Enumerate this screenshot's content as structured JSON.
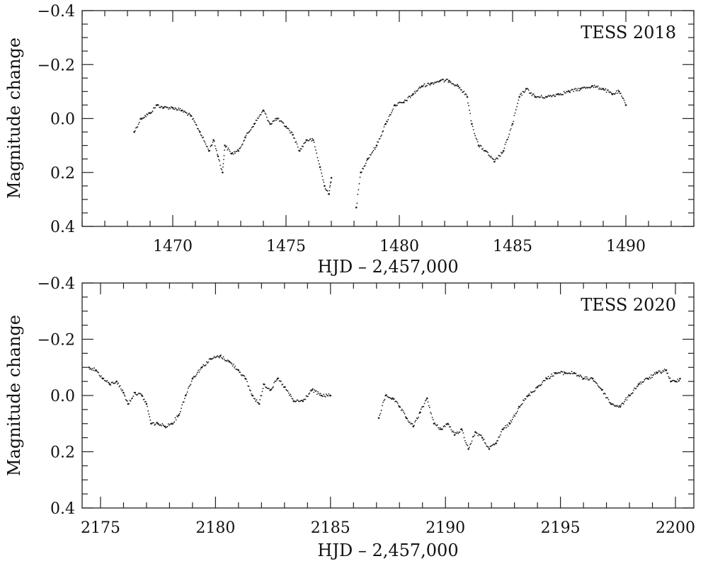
{
  "chart_data": [
    {
      "type": "scatter",
      "panel_label": "TESS 2018",
      "xlabel": "HJD – 2,457,000",
      "ylabel": "Magnitude change",
      "xlim": [
        1466,
        1493
      ],
      "ylim": [
        0.4,
        -0.4
      ],
      "y_inverted": true,
      "xticks": [
        1470,
        1475,
        1480,
        1485,
        1490
      ],
      "xtick_labels": [
        "1470",
        "1475",
        "1480",
        "1485",
        "1490"
      ],
      "yticks": [
        -0.4,
        -0.2,
        0.0,
        0.2,
        0.4
      ],
      "ytick_labels": [
        "−0.4",
        "−0.2",
        "0.0",
        "0.2",
        "0.4"
      ],
      "grid": false,
      "series": [
        {
          "x": [
            1468.3,
            1468.6,
            1469.0,
            1469.3,
            1469.6,
            1470.0,
            1470.4,
            1470.8,
            1471.2,
            1471.6,
            1471.8,
            1472.0,
            1472.2,
            1472.3,
            1472.6,
            1472.9,
            1473.2,
            1473.6,
            1474.0,
            1474.3,
            1474.6,
            1475.0,
            1475.3,
            1475.6,
            1475.9,
            1476.2,
            1476.5,
            1476.7,
            1476.9,
            1477.0
          ],
          "y": [
            0.05,
            0.0,
            -0.02,
            -0.05,
            -0.04,
            -0.04,
            -0.03,
            -0.01,
            0.05,
            0.12,
            0.08,
            0.14,
            0.2,
            0.1,
            0.13,
            0.12,
            0.07,
            0.02,
            -0.03,
            0.02,
            0.0,
            0.03,
            0.06,
            0.12,
            0.08,
            0.08,
            0.18,
            0.25,
            0.28,
            0.22
          ]
        },
        {
          "x": [
            1478.1,
            1478.3,
            1478.6,
            1479.0,
            1479.4,
            1479.8,
            1480.2,
            1480.6,
            1481.0,
            1481.4,
            1481.8,
            1482.2,
            1482.6,
            1483.0,
            1483.2,
            1483.5,
            1483.8,
            1484.2,
            1484.6,
            1485.0,
            1485.3,
            1485.6,
            1486.0,
            1486.5,
            1487.0,
            1487.5,
            1488.0,
            1488.5,
            1489.0,
            1489.4,
            1489.7,
            1490.0
          ],
          "y": [
            0.33,
            0.2,
            0.15,
            0.1,
            0.02,
            -0.05,
            -0.06,
            -0.09,
            -0.12,
            -0.13,
            -0.14,
            -0.14,
            -0.12,
            -0.08,
            0.02,
            0.1,
            0.12,
            0.16,
            0.12,
            0.02,
            -0.08,
            -0.11,
            -0.08,
            -0.08,
            -0.09,
            -0.1,
            -0.11,
            -0.12,
            -0.11,
            -0.09,
            -0.1,
            -0.05
          ]
        }
      ]
    },
    {
      "type": "scatter",
      "panel_label": "TESS 2020",
      "xlabel": "HJD – 2,457,000",
      "ylabel": "Magnitude change",
      "xlim": [
        2174.2,
        2200.8
      ],
      "ylim": [
        0.4,
        -0.4
      ],
      "y_inverted": true,
      "xticks": [
        2175,
        2180,
        2185,
        2190,
        2195,
        2200
      ],
      "xtick_labels": [
        "2175",
        "2180",
        "2185",
        "2190",
        "2195",
        "2200"
      ],
      "yticks": [
        -0.4,
        -0.2,
        0.0,
        0.2,
        0.4
      ],
      "ytick_labels": [
        "−0.4",
        "−0.2",
        "0.0",
        "0.2",
        "0.4"
      ],
      "grid": false,
      "series": [
        {
          "x": [
            2174.5,
            2174.8,
            2175.1,
            2175.4,
            2175.7,
            2176.0,
            2176.2,
            2176.5,
            2176.8,
            2177.0,
            2177.2,
            2177.5,
            2177.8,
            2178.1,
            2178.4,
            2178.7,
            2179.0,
            2179.4,
            2179.8,
            2180.2,
            2180.6,
            2181.0,
            2181.3,
            2181.6,
            2181.9,
            2182.1,
            2182.4,
            2182.7,
            2183.0,
            2183.4,
            2183.8,
            2184.2,
            2184.6,
            2185.0
          ],
          "y": [
            -0.1,
            -0.09,
            -0.06,
            -0.04,
            -0.05,
            -0.01,
            0.03,
            -0.01,
            0.0,
            0.03,
            0.1,
            0.1,
            0.11,
            0.1,
            0.07,
            0.0,
            -0.06,
            -0.1,
            -0.13,
            -0.14,
            -0.12,
            -0.09,
            -0.06,
            0.0,
            0.03,
            -0.04,
            -0.02,
            -0.06,
            -0.03,
            0.02,
            0.02,
            -0.02,
            0.0,
            0.0
          ]
        },
        {
          "x": [
            2187.1,
            2187.4,
            2187.7,
            2188.0,
            2188.3,
            2188.6,
            2188.9,
            2189.2,
            2189.5,
            2189.8,
            2190.1,
            2190.4,
            2190.7,
            2191.0,
            2191.3,
            2191.6,
            2191.9,
            2192.2,
            2192.5,
            2192.8,
            2193.2,
            2193.6,
            2194.0,
            2194.4,
            2194.8,
            2195.2,
            2195.6,
            2196.0,
            2196.4,
            2196.8,
            2197.2,
            2197.6,
            2198.0,
            2198.4,
            2198.8,
            2199.2,
            2199.6,
            2199.8,
            2200.0,
            2200.2
          ],
          "y": [
            0.08,
            0.0,
            0.01,
            0.04,
            0.08,
            0.11,
            0.06,
            0.01,
            0.1,
            0.12,
            0.1,
            0.14,
            0.12,
            0.19,
            0.13,
            0.15,
            0.19,
            0.17,
            0.12,
            0.1,
            0.04,
            0.0,
            -0.03,
            -0.06,
            -0.08,
            -0.08,
            -0.08,
            -0.06,
            -0.06,
            -0.02,
            0.03,
            0.04,
            0.0,
            -0.04,
            -0.06,
            -0.08,
            -0.09,
            -0.05,
            -0.05,
            -0.06
          ]
        }
      ]
    }
  ]
}
